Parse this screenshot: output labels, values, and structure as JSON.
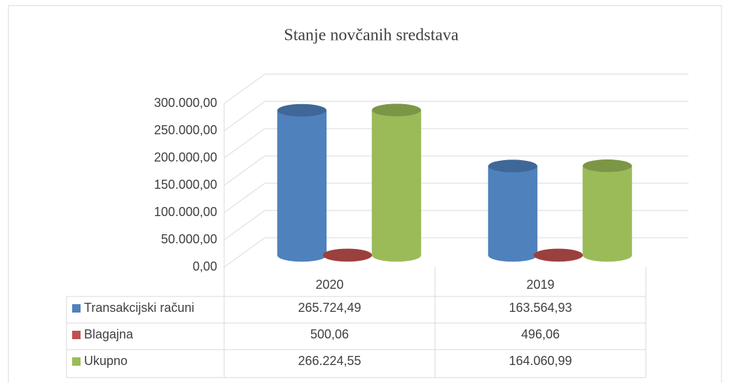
{
  "chart_data": {
    "type": "bar3d",
    "title": "Stanje novčanih sredstava",
    "categories": [
      "2020",
      "2019"
    ],
    "series": [
      {
        "name": "Transakcijski računi",
        "color": "#4f81bd",
        "values": [
          265724.49,
          163564.93
        ],
        "value_labels": [
          "265.724,49",
          "163.564,93"
        ]
      },
      {
        "name": "Blagajna",
        "color": "#c0504d",
        "values": [
          500.06,
          496.06
        ],
        "value_labels": [
          "500,06",
          "496,06"
        ]
      },
      {
        "name": "Ukupno",
        "color": "#9bbb59",
        "values": [
          266224.55,
          164060.99
        ],
        "value_labels": [
          "266.224,55",
          "164.060,99"
        ]
      }
    ],
    "ylim": [
      0,
      300000
    ],
    "yticks": [
      {
        "value": 0,
        "label": "0,00"
      },
      {
        "value": 50000,
        "label": "50.000,00"
      },
      {
        "value": 100000,
        "label": "100.000,00"
      },
      {
        "value": 150000,
        "label": "150.000,00"
      },
      {
        "value": 200000,
        "label": "200.000,00"
      },
      {
        "value": 250000,
        "label": "250.000,00"
      },
      {
        "value": 300000,
        "label": "300.000,00"
      }
    ],
    "grid": true
  }
}
